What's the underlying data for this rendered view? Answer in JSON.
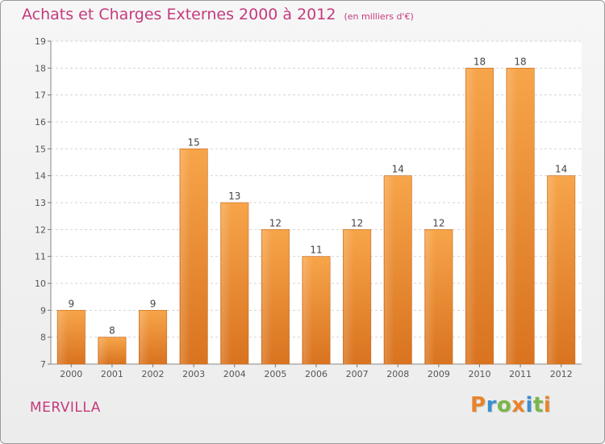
{
  "chart_data": {
    "type": "bar",
    "title": "Achats et Charges Externes 2000 à 2012",
    "unit_label": "(en milliers d'€)",
    "categories": [
      "2000",
      "2001",
      "2002",
      "2003",
      "2004",
      "2005",
      "2006",
      "2007",
      "2008",
      "2009",
      "2010",
      "2011",
      "2012"
    ],
    "values": [
      9,
      8,
      9,
      15,
      13,
      12,
      11,
      12,
      14,
      12,
      18,
      18,
      14
    ],
    "ylim": [
      7,
      19
    ],
    "yticks": [
      7,
      8,
      9,
      10,
      11,
      12,
      13,
      14,
      15,
      16,
      17,
      18,
      19
    ],
    "grid": "horizontal dashed",
    "bar_color": "#f29b3e",
    "xlabel": "",
    "ylabel": ""
  },
  "place_name": "MERVILLA",
  "logo": {
    "letters": [
      "P",
      "r",
      "o",
      "x",
      "i",
      "t",
      "i"
    ],
    "colors": [
      "#e8842a",
      "#3b8fd1",
      "#7ab648",
      "#e8842a",
      "#3b8fd1",
      "#7ab648",
      "#e8842a"
    ]
  }
}
